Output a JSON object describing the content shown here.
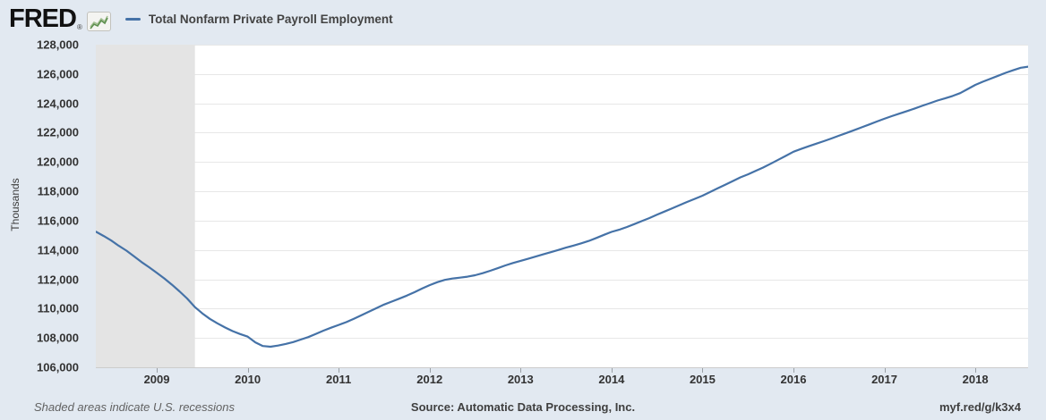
{
  "header": {
    "logo_text": "FRED",
    "logo_registered": "®",
    "legend": {
      "series_label": "Total Nonfarm Private Payroll Employment"
    }
  },
  "footer": {
    "recession_note": "Shaded areas indicate U.S. recessions",
    "source": "Source: Automatic Data Processing, Inc.",
    "short_url": "myf.red/g/k3x4"
  },
  "colors": {
    "background": "#e2e9f1",
    "plot_background": "#ffffff",
    "recession_band": "#e4e4e4",
    "gridline": "#e7e7e7",
    "axis_line": "#cccccc",
    "tick_mark": "#9aa0a6",
    "line": "#4572a7",
    "icon_spark_green": "#5d8f4e",
    "icon_spark_light": "#a3bf93"
  },
  "chart_data": {
    "type": "line",
    "title": "Total Nonfarm Private Payroll Employment",
    "xlabel": "",
    "ylabel": "Thousands",
    "ylim": [
      106000,
      128000
    ],
    "xlim": [
      2008.33,
      2018.58
    ],
    "grid": true,
    "legend_position": "top-left",
    "y_ticks": [
      106000,
      108000,
      110000,
      112000,
      114000,
      116000,
      118000,
      120000,
      122000,
      124000,
      126000,
      128000
    ],
    "y_tick_labels": [
      "106,000",
      "108,000",
      "110,000",
      "112,000",
      "114,000",
      "116,000",
      "118,000",
      "120,000",
      "122,000",
      "124,000",
      "126,000",
      "128,000"
    ],
    "x_ticks": [
      2009,
      2010,
      2011,
      2012,
      2013,
      2014,
      2015,
      2016,
      2017,
      2018
    ],
    "recession_bands": [
      {
        "start": 2008.33,
        "end": 2009.42,
        "note": "Great Recession (clipped at left edge, ends June 2009)"
      }
    ],
    "series": [
      {
        "name": "Total Nonfarm Private Payroll Employment",
        "color": "#4572a7",
        "units": "Thousands",
        "frequency": "monthly",
        "start_month": "2008-05",
        "start_decimal": 2008.3333,
        "monthly_values": [
          115240,
          114950,
          114640,
          114280,
          113950,
          113560,
          113170,
          112820,
          112440,
          112060,
          111630,
          111180,
          110690,
          110120,
          109680,
          109300,
          109000,
          108720,
          108470,
          108270,
          108090,
          107700,
          107450,
          107400,
          107480,
          107590,
          107720,
          107890,
          108060,
          108280,
          108500,
          108700,
          108890,
          109080,
          109310,
          109550,
          109790,
          110040,
          110280,
          110480,
          110680,
          110890,
          111120,
          111370,
          111600,
          111800,
          111960,
          112050,
          112110,
          112180,
          112280,
          112420,
          112580,
          112760,
          112950,
          113110,
          113260,
          113400,
          113550,
          113700,
          113850,
          114000,
          114160,
          114300,
          114450,
          114620,
          114820,
          115030,
          115230,
          115380,
          115560,
          115760,
          115970,
          116180,
          116400,
          116620,
          116840,
          117060,
          117280,
          117490,
          117700,
          117950,
          118200,
          118450,
          118700,
          118950,
          119160,
          119390,
          119620,
          119880,
          120150,
          120420,
          120700,
          120890,
          121070,
          121250,
          121420,
          121600,
          121790,
          121980,
          122170,
          122360,
          122560,
          122760,
          122950,
          123130,
          123300,
          123470,
          123650,
          123830,
          124010,
          124190,
          124340,
          124500,
          124700,
          124980,
          125260,
          125480,
          125680,
          125880,
          126080,
          126260,
          126430,
          126500
        ]
      }
    ]
  }
}
